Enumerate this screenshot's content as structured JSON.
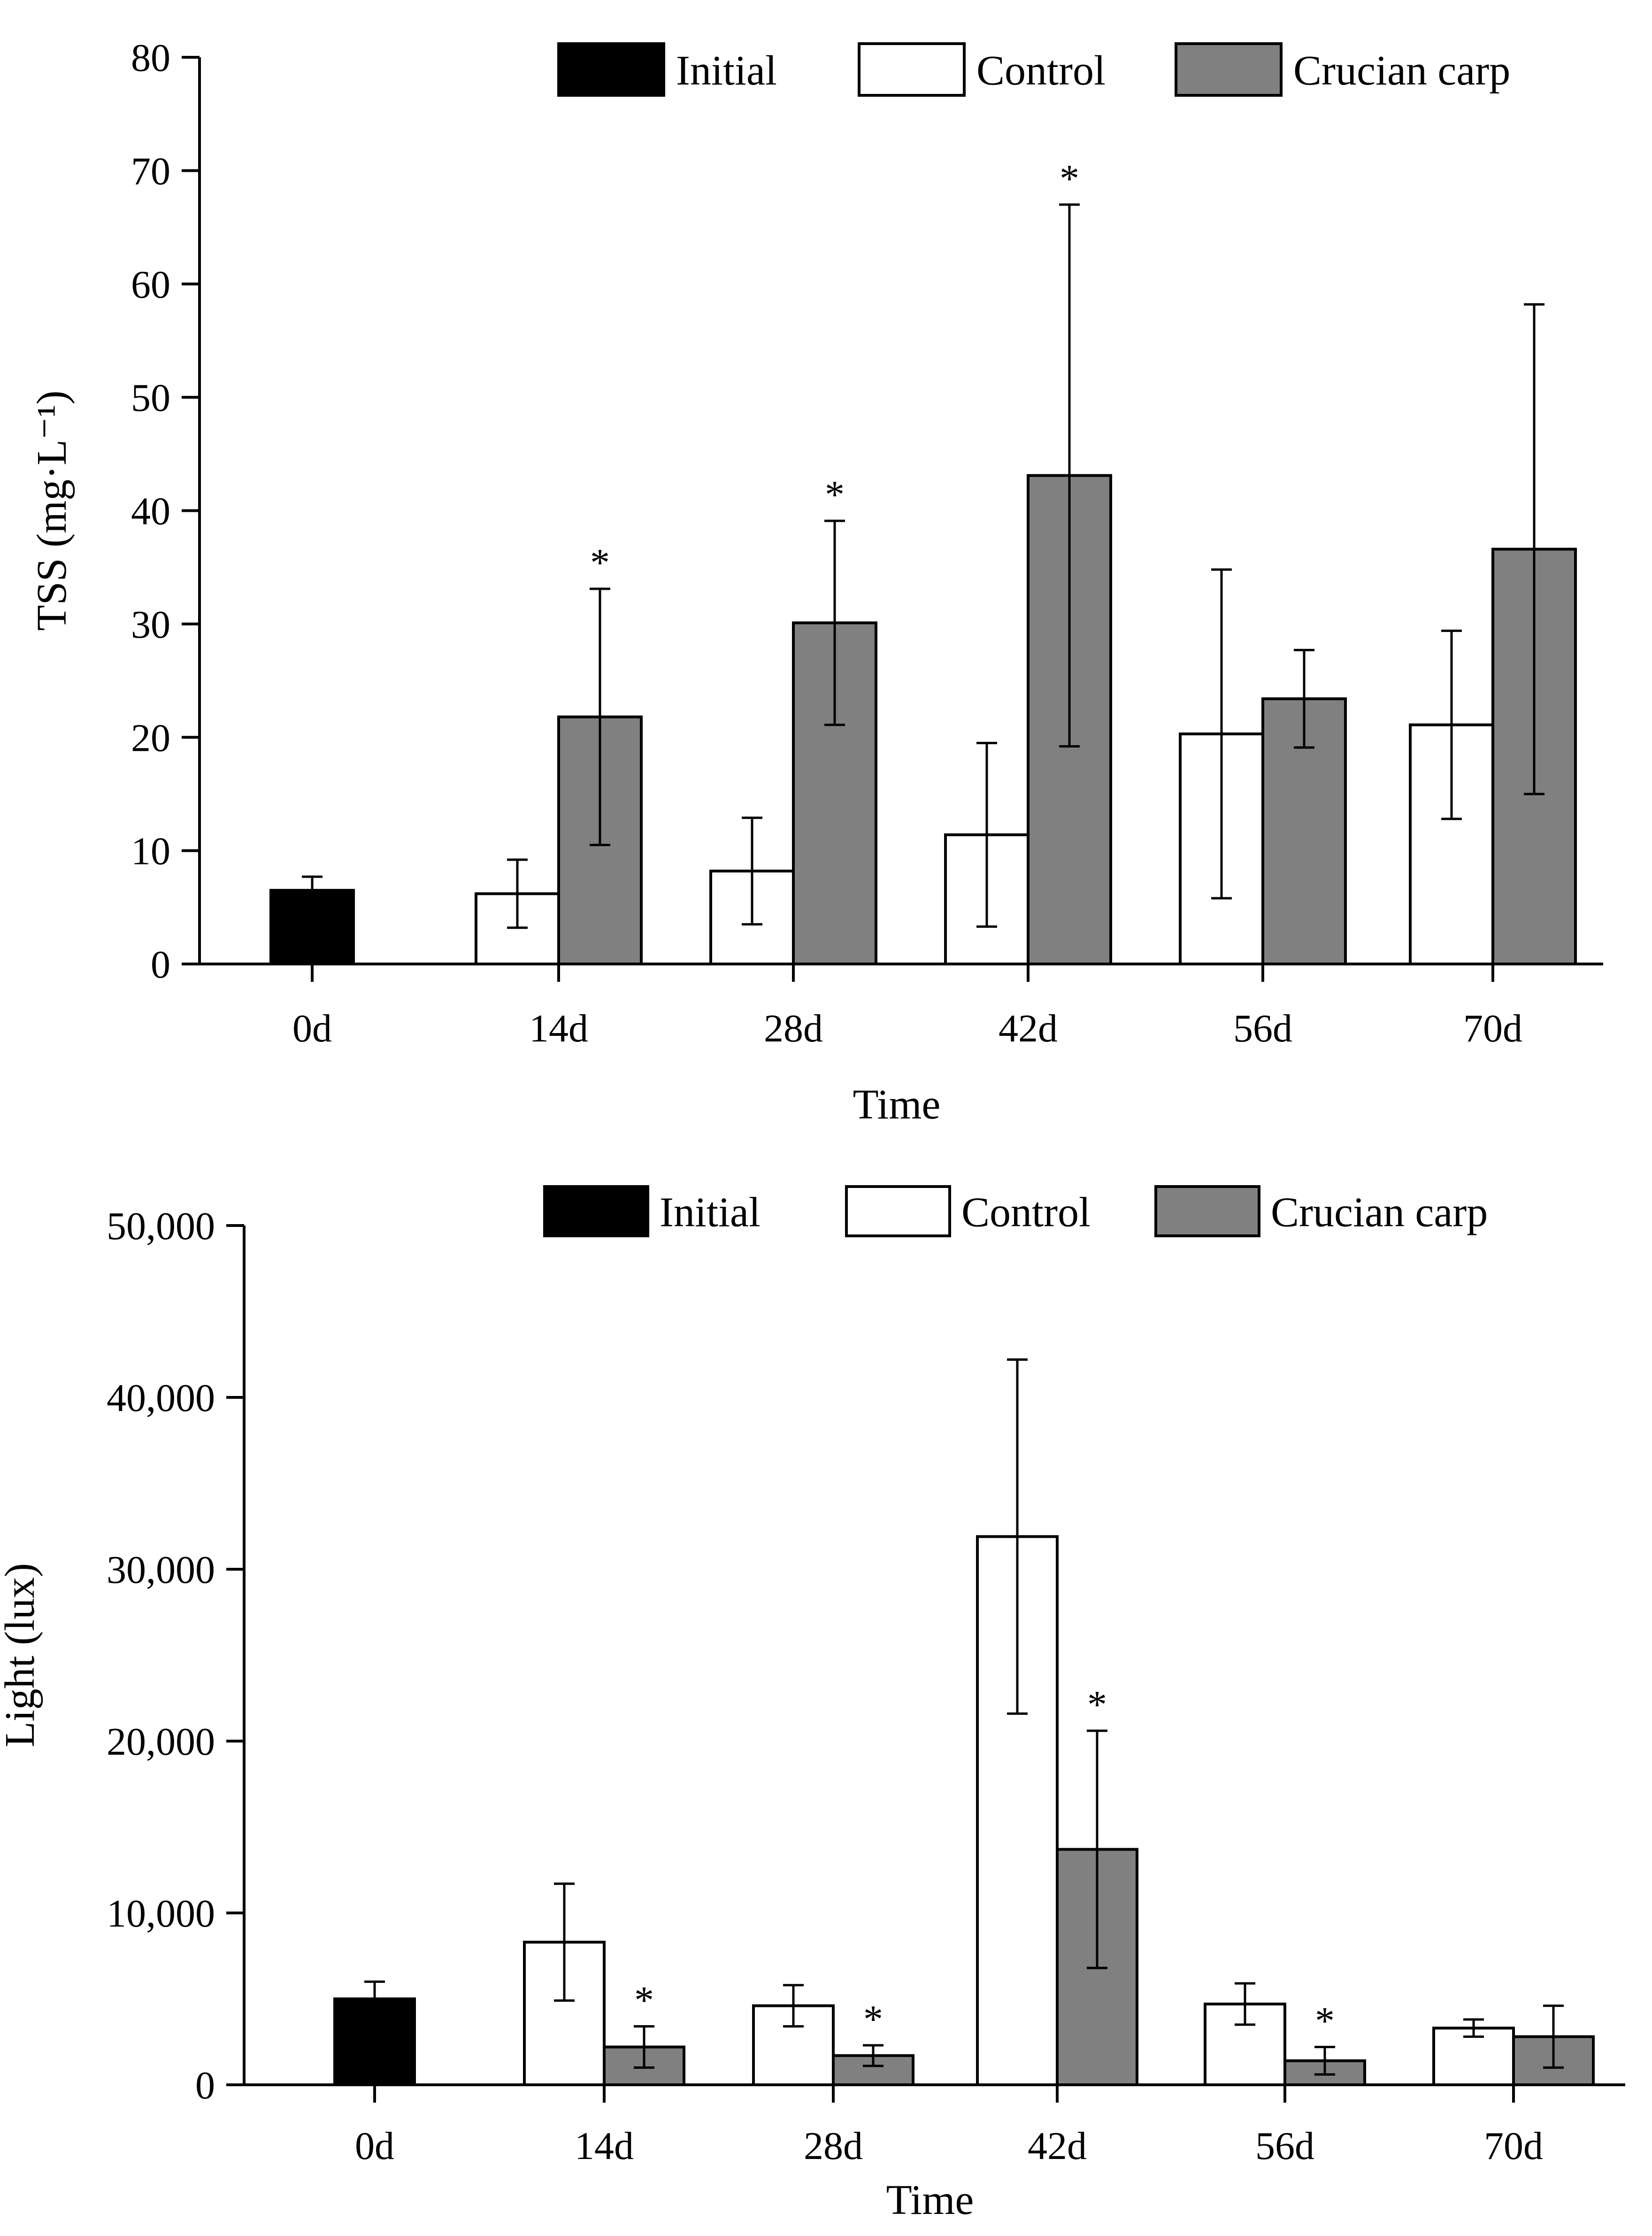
{
  "colors": {
    "initial": "#000000",
    "control": "#ffffff",
    "crucian": "#808080",
    "stroke": "#000000"
  },
  "chart_data": [
    {
      "type": "bar",
      "name": "tss-chart",
      "xlabel": "Time",
      "ylabel": "TSS (mg·L⁻¹)",
      "ylim": [
        0,
        80
      ],
      "yticks": [
        0,
        10,
        20,
        30,
        40,
        50,
        60,
        70,
        80
      ],
      "ytick_labels": [
        "0",
        "10",
        "20",
        "30",
        "40",
        "50",
        "60",
        "70",
        "80"
      ],
      "categories": [
        "0d",
        "14d",
        "28d",
        "42d",
        "56d",
        "70d"
      ],
      "legend": {
        "position": "top-right",
        "entries": [
          "Initial",
          "Control",
          "Crucian carp"
        ]
      },
      "series": [
        {
          "name": "Initial",
          "key": "initial",
          "values": [
            6.5,
            null,
            null,
            null,
            null,
            null
          ],
          "errors": [
            1.2,
            null,
            null,
            null,
            null,
            null
          ],
          "stars": [
            false,
            false,
            false,
            false,
            false,
            false
          ]
        },
        {
          "name": "Control",
          "key": "control",
          "values": [
            null,
            6.2,
            8.2,
            11.4,
            20.3,
            21.1
          ],
          "errors": [
            null,
            3.0,
            4.7,
            8.1,
            14.5,
            8.3
          ],
          "stars": [
            false,
            false,
            false,
            false,
            false,
            false
          ]
        },
        {
          "name": "Crucian carp",
          "key": "crucian",
          "values": [
            null,
            21.8,
            30.1,
            43.1,
            23.4,
            36.6
          ],
          "errors": [
            null,
            11.3,
            9.0,
            23.9,
            4.3,
            21.6
          ],
          "stars": [
            false,
            true,
            true,
            true,
            false,
            false
          ]
        }
      ],
      "star_symbol": "*"
    },
    {
      "type": "bar",
      "name": "light-chart",
      "xlabel": "Time",
      "ylabel": "Light (lux)",
      "ylim": [
        0,
        50000
      ],
      "yticks": [
        0,
        10000,
        20000,
        30000,
        40000,
        50000
      ],
      "ytick_labels": [
        "0",
        "10,000",
        "20,000",
        "30,000",
        "40,000",
        "50,000"
      ],
      "categories": [
        "0d",
        "14d",
        "28d",
        "42d",
        "56d",
        "70d"
      ],
      "legend": {
        "position": "top-right",
        "entries": [
          "Initial",
          "Control",
          "Crucian carp"
        ]
      },
      "series": [
        {
          "name": "Initial",
          "key": "initial",
          "values": [
            5000,
            null,
            null,
            null,
            null,
            null
          ],
          "errors": [
            1000,
            null,
            null,
            null,
            null,
            null
          ],
          "stars": [
            false,
            false,
            false,
            false,
            false,
            false
          ]
        },
        {
          "name": "Control",
          "key": "control",
          "values": [
            null,
            8300,
            4600,
            31900,
            4700,
            3300
          ],
          "errors": [
            null,
            3400,
            1200,
            10300,
            1200,
            500
          ],
          "stars": [
            false,
            false,
            false,
            false,
            false,
            false
          ]
        },
        {
          "name": "Crucian carp",
          "key": "crucian",
          "values": [
            null,
            2200,
            1700,
            13700,
            1400,
            2800
          ],
          "errors": [
            null,
            1200,
            600,
            6900,
            800,
            1800
          ],
          "stars": [
            false,
            true,
            true,
            true,
            true,
            false
          ]
        }
      ],
      "star_symbol": "*"
    }
  ]
}
